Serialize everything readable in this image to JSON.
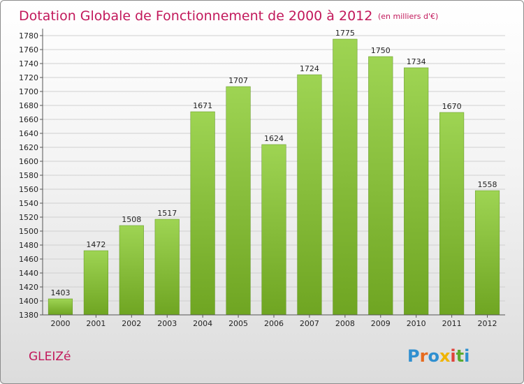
{
  "chart_data": {
    "type": "bar",
    "title": "Dotation Globale de Fonctionnement de 2000 à 2012",
    "subtitle": "(en milliers d'€)",
    "categories": [
      "2000",
      "2001",
      "2002",
      "2003",
      "2004",
      "2005",
      "2006",
      "2007",
      "2008",
      "2009",
      "2010",
      "2011",
      "2012"
    ],
    "values": [
      1403,
      1472,
      1508,
      1517,
      1671,
      1707,
      1624,
      1724,
      1775,
      1750,
      1734,
      1670,
      1558
    ],
    "ylim": [
      1380,
      1790
    ],
    "yticks": [
      1380,
      1400,
      1420,
      1440,
      1460,
      1480,
      1500,
      1520,
      1540,
      1560,
      1580,
      1600,
      1620,
      1640,
      1660,
      1680,
      1700,
      1720,
      1740,
      1760,
      1780
    ],
    "grid": true,
    "bar_color": "#8cc43c"
  },
  "footer": {
    "place": "GLEIZé",
    "logo": "Proxiti",
    "logo_colors": [
      "#2f8fd0",
      "#e66a1e",
      "#2f8fd0",
      "#f0b400",
      "#e0433a",
      "#5aaa2f",
      "#2f8fd0"
    ]
  }
}
